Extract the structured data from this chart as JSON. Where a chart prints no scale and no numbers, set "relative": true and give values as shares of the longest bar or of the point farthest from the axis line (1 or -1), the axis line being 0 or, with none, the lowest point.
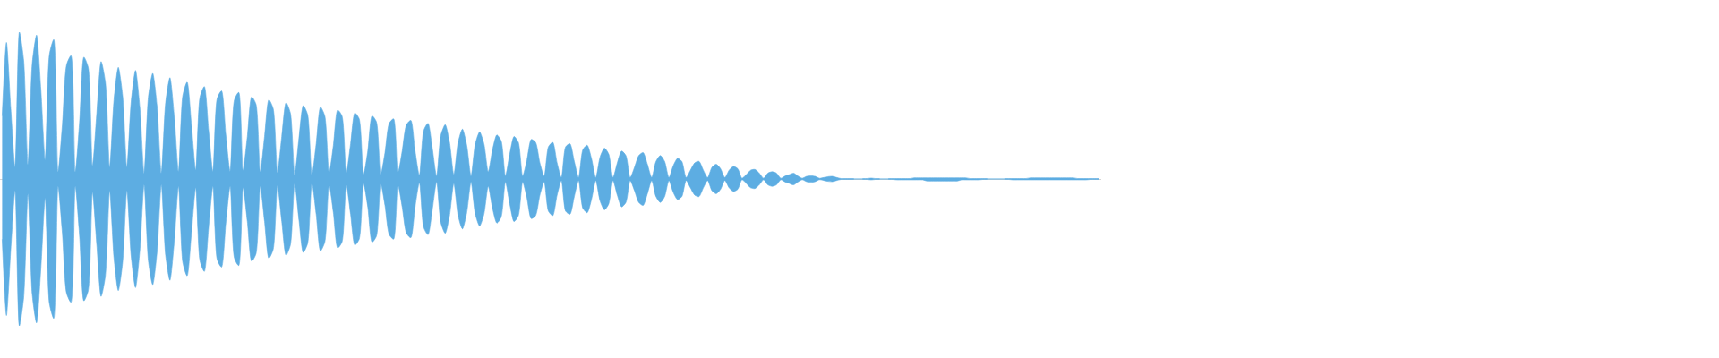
{
  "chart_data": {
    "type": "area",
    "relative": true,
    "categories": [
      null,
      null,
      null,
      null,
      null,
      null,
      null,
      null,
      null,
      null,
      null,
      null,
      null,
      null,
      null,
      null,
      null,
      null,
      null,
      null,
      null,
      null,
      null,
      null,
      null,
      null,
      null,
      null,
      null,
      null,
      null,
      null,
      null,
      null,
      null,
      null,
      null,
      null,
      null,
      null,
      null,
      null,
      null,
      null,
      null,
      null,
      null,
      null,
      null,
      null,
      null,
      null,
      null,
      null,
      null,
      null,
      null,
      null,
      null,
      null,
      null,
      null,
      null,
      null,
      null,
      null,
      null,
      null,
      null,
      null,
      null,
      null,
      null,
      null,
      null,
      null,
      null,
      null,
      null,
      null,
      null,
      null,
      null,
      null,
      null,
      null,
      null,
      null,
      null,
      null,
      null,
      null,
      null,
      null,
      null,
      null,
      null,
      null,
      null,
      null,
      null,
      null,
      null,
      null,
      null,
      null,
      null,
      null,
      null,
      null,
      null,
      null,
      null,
      null,
      null,
      null,
      null,
      null,
      null,
      null,
      null,
      null,
      null,
      null,
      null,
      null,
      null,
      null,
      null,
      null,
      null,
      null,
      null,
      null,
      null,
      null,
      null,
      null,
      null,
      null,
      null,
      null,
      null,
      null,
      null,
      null,
      null,
      null,
      null,
      null,
      null,
      null,
      null,
      null,
      null,
      null,
      null,
      null,
      null,
      null,
      null,
      null,
      null,
      null,
      null,
      null,
      null,
      null,
      null,
      null,
      null,
      null,
      null,
      null,
      null,
      null,
      null,
      null,
      null,
      null,
      null,
      null,
      null,
      null,
      null,
      null,
      null,
      null,
      null,
      null,
      null,
      null,
      null,
      null,
      null,
      null,
      null,
      null,
      null,
      null,
      null,
      null,
      null,
      null,
      null,
      null,
      null,
      null,
      null,
      null,
      null,
      null,
      null,
      null,
      null,
      null,
      null,
      null,
      null,
      null,
      null,
      null,
      null,
      null,
      null,
      null,
      null,
      null,
      null,
      null,
      null,
      null,
      null,
      null,
      null,
      null,
      null,
      null,
      null,
      null,
      null,
      null,
      null,
      null,
      null,
      null,
      null,
      null,
      null,
      null,
      null,
      null,
      null,
      null,
      null,
      null
    ],
    "series": [
      {
        "color": "#5dade2",
        "values": [
          0.43,
          0.93,
          0.48,
          0.08,
          1.0,
          0.81,
          0.1,
          0.79,
          0.98,
          0.61,
          0.13,
          0.85,
          0.95,
          0.05,
          0.37,
          0.78,
          0.84,
          0.05,
          0.39,
          0.83,
          0.76,
          0.09,
          0.45,
          0.8,
          0.66,
          0.08,
          0.54,
          0.76,
          0.57,
          0.08,
          0.53,
          0.74,
          0.49,
          0.04,
          0.56,
          0.72,
          0.5,
          0.04,
          0.52,
          0.69,
          0.43,
          0.05,
          0.57,
          0.66,
          0.37,
          0.06,
          0.56,
          0.63,
          0.33,
          0.05,
          0.55,
          0.6,
          0.3,
          0.05,
          0.54,
          0.59,
          0.06,
          0.29,
          0.56,
          0.51,
          0.05,
          0.29,
          0.54,
          0.48,
          0.045,
          0.29,
          0.52,
          0.45,
          0.03,
          0.28,
          0.5,
          0.44,
          0.025,
          0.24,
          0.49,
          0.43,
          0.04,
          0.23,
          0.47,
          0.43,
          0.04,
          0.24,
          0.45,
          0.41,
          0.03,
          0.19,
          0.43,
          0.39,
          0.03,
          0.18,
          0.38,
          0.41,
          0.04,
          0.19,
          0.37,
          0.4,
          0.19,
          0.025,
          0.33,
          0.38,
          0.21,
          0.02,
          0.3,
          0.37,
          0.25,
          0.03,
          0.25,
          0.34,
          0.23,
          0.02,
          0.24,
          0.32,
          0.24,
          0.05,
          0.2,
          0.3,
          0.26,
          0.02,
          0.17,
          0.29,
          0.25,
          0.02,
          0.13,
          0.27,
          0.25,
          0.11,
          0.02,
          0.22,
          0.25,
          0.11,
          0.01,
          0.22,
          0.24,
          0.12,
          0.01,
          0.2,
          0.23,
          0.14,
          0.01,
          0.15,
          0.21,
          0.17,
          0.01,
          0.11,
          0.19,
          0.16,
          0.01,
          0.08,
          0.16,
          0.18,
          0.1,
          0.01,
          0.12,
          0.16,
          0.12,
          0.01,
          0.09,
          0.14,
          0.12,
          0.01,
          0.06,
          0.11,
          0.12,
          0.06,
          0.01,
          0.08,
          0.1,
          0.07,
          0.01,
          0.06,
          0.085,
          0.07,
          0.005,
          0.03,
          0.06,
          0.065,
          0.04,
          0.005,
          0.04,
          0.05,
          0.04,
          0.005,
          0.02,
          0.03,
          0.04,
          0.02,
          0.005,
          0.018,
          0.022,
          0.018,
          0.005,
          0.01,
          0.016,
          0.018,
          0.01,
          0.003,
          0.003,
          0.003,
          0.003,
          null,
          0.003,
          0.003,
          0.006,
          0.003,
          0.003,
          null,
          0.003,
          0.003,
          0.003,
          0.003,
          0.003,
          0.003,
          0.008,
          0.008,
          0.008,
          0.008,
          0.008,
          0.008,
          0.008,
          0.008,
          0.008,
          0.008,
          0.008,
          0.008,
          0.008,
          0.003,
          0.003,
          0.003,
          0.003,
          0.003,
          null,
          null,
          null,
          0.003,
          0.003,
          0.003,
          0.003,
          0.003,
          0.003,
          0.008,
          0.008,
          0.008,
          0.008,
          0.008,
          0.008,
          0.008,
          0.008,
          0.008,
          0.008,
          0.008,
          0.003,
          0.003,
          0.003,
          0.003,
          0.003,
          0.003
        ]
      },
      {
        "color": "#5dade2",
        "values": [
          -0.41,
          -0.93,
          -0.48,
          -0.08,
          -1.0,
          -0.81,
          -0.1,
          -0.79,
          -0.98,
          -0.61,
          -0.13,
          -0.85,
          -0.95,
          -0.05,
          -0.37,
          -0.78,
          -0.84,
          -0.05,
          -0.39,
          -0.83,
          -0.76,
          -0.09,
          -0.45,
          -0.8,
          -0.66,
          -0.08,
          -0.54,
          -0.76,
          -0.57,
          -0.08,
          -0.53,
          -0.74,
          -0.49,
          -0.04,
          -0.56,
          -0.72,
          -0.5,
          -0.04,
          -0.52,
          -0.69,
          -0.43,
          -0.05,
          -0.57,
          -0.66,
          -0.37,
          -0.06,
          -0.56,
          -0.63,
          -0.33,
          -0.05,
          -0.55,
          -0.6,
          -0.3,
          -0.05,
          -0.54,
          -0.59,
          -0.06,
          -0.29,
          -0.56,
          -0.51,
          -0.05,
          -0.29,
          -0.54,
          -0.48,
          -0.045,
          -0.29,
          -0.52,
          -0.45,
          -0.03,
          -0.28,
          -0.5,
          -0.44,
          -0.025,
          -0.24,
          -0.49,
          -0.43,
          -0.04,
          -0.23,
          -0.47,
          -0.43,
          -0.04,
          -0.24,
          -0.45,
          -0.41,
          -0.03,
          -0.19,
          -0.43,
          -0.39,
          -0.03,
          -0.18,
          -0.38,
          -0.41,
          -0.04,
          -0.19,
          -0.37,
          -0.4,
          -0.19,
          -0.025,
          -0.33,
          -0.38,
          -0.21,
          -0.02,
          -0.3,
          -0.37,
          -0.25,
          -0.03,
          -0.25,
          -0.34,
          -0.23,
          -0.02,
          -0.24,
          -0.32,
          -0.24,
          -0.05,
          -0.2,
          -0.3,
          -0.26,
          -0.02,
          -0.17,
          -0.29,
          -0.25,
          -0.02,
          -0.13,
          -0.27,
          -0.25,
          -0.11,
          -0.02,
          -0.22,
          -0.25,
          -0.11,
          -0.01,
          -0.22,
          -0.24,
          -0.12,
          -0.01,
          -0.2,
          -0.23,
          -0.14,
          -0.01,
          -0.15,
          -0.21,
          -0.17,
          -0.01,
          -0.11,
          -0.19,
          -0.16,
          -0.01,
          -0.08,
          -0.16,
          -0.18,
          -0.1,
          -0.01,
          -0.12,
          -0.16,
          -0.12,
          -0.01,
          -0.09,
          -0.14,
          -0.12,
          -0.01,
          -0.06,
          -0.11,
          -0.12,
          -0.06,
          -0.01,
          -0.08,
          -0.1,
          -0.07,
          -0.01,
          -0.06,
          -0.085,
          -0.07,
          -0.005,
          -0.03,
          -0.06,
          -0.065,
          -0.04,
          -0.005,
          -0.04,
          -0.05,
          -0.04,
          -0.005,
          -0.02,
          -0.03,
          -0.04,
          -0.02,
          -0.005,
          -0.018,
          -0.022,
          -0.018,
          -0.005,
          -0.01,
          -0.016,
          -0.018,
          -0.01,
          -0.003,
          -0.003,
          -0.003,
          -0.003,
          null,
          -0.003,
          -0.003,
          -0.006,
          -0.003,
          -0.003,
          null,
          -0.003,
          -0.003,
          -0.006,
          -0.006,
          -0.006,
          -0.006,
          -0.006,
          -0.006,
          -0.006,
          -0.014,
          -0.014,
          -0.014,
          -0.014,
          -0.014,
          -0.014,
          -0.014,
          -0.014,
          -0.006,
          -0.006,
          -0.006,
          -0.006,
          -0.006,
          -0.003,
          -0.003,
          null,
          null,
          null,
          -0.003,
          -0.003,
          -0.006,
          -0.006,
          -0.006,
          -0.006,
          -0.006,
          -0.006,
          -0.006,
          -0.006,
          -0.006,
          -0.006,
          -0.006,
          -0.006,
          -0.006,
          -0.006,
          -0.006,
          -0.006,
          -0.006,
          -0.006,
          -0.003,
          -0.003,
          -0.003
        ]
      }
    ]
  }
}
